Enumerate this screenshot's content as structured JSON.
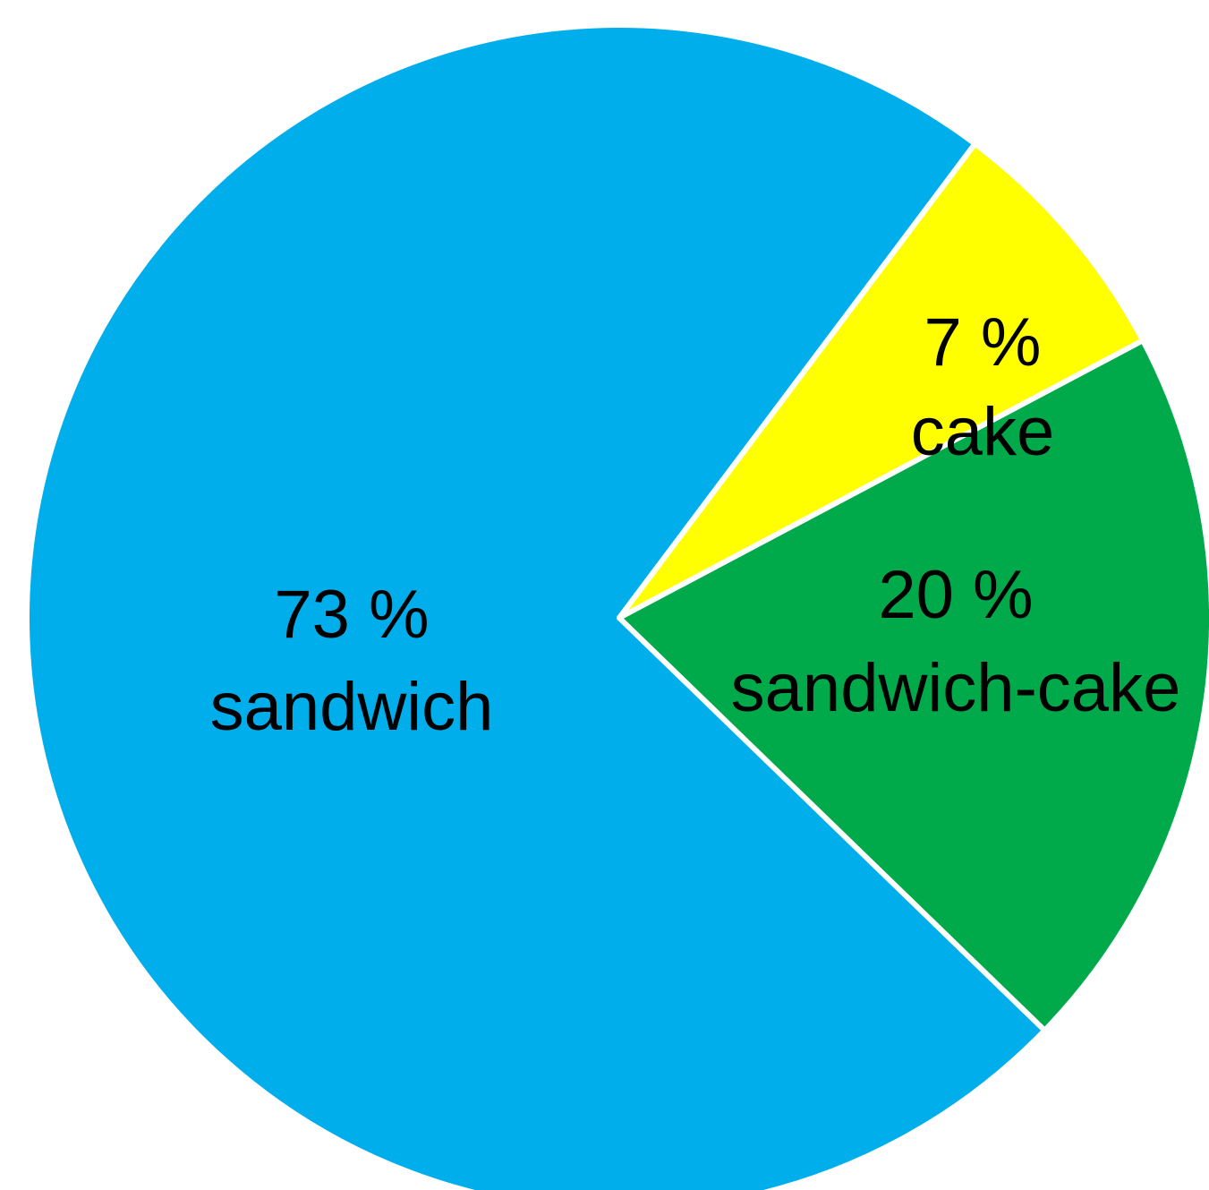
{
  "chart_data": {
    "type": "pie",
    "slices": [
      {
        "name": "sandwich",
        "value": 73,
        "value_label": "73 %",
        "color": "#00AEEB"
      },
      {
        "name": "cake",
        "value": 7,
        "value_label": "7 %",
        "color": "#FFFF00"
      },
      {
        "name": "sandwich-cake",
        "value": 20,
        "value_label": "20 %",
        "color": "#00AA4A"
      }
    ],
    "legend": "none",
    "slice_border_color": "#FFFFFF",
    "background_color": "#FFFFFF"
  }
}
